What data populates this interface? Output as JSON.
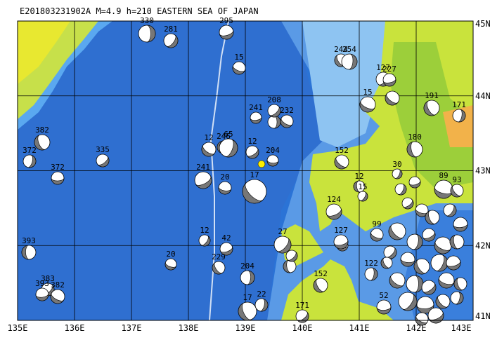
{
  "header": {
    "title": "E201803231902A M=4.9 h=210 EASTERN SEA OF JAPAN"
  },
  "axes": {
    "longitude": [
      "135E",
      "136E",
      "137E",
      "138E",
      "139E",
      "140E",
      "141E",
      "142E",
      "143E"
    ],
    "latitude": [
      "45N",
      "44N",
      "43N",
      "42N",
      "41N"
    ]
  },
  "events": [
    {
      "label": "330"
    },
    {
      "label": "281"
    },
    {
      "label": "295"
    },
    {
      "label": "15"
    },
    {
      "label": "244"
    },
    {
      "label": "254"
    },
    {
      "label": "127"
    },
    {
      "label": "227"
    },
    {
      "label": "15"
    },
    {
      "label": "191"
    },
    {
      "label": "171"
    },
    {
      "label": "208"
    },
    {
      "label": "241"
    },
    {
      "label": "232"
    },
    {
      "label": "382"
    },
    {
      "label": "372"
    },
    {
      "label": "335"
    },
    {
      "label": "372"
    },
    {
      "label": "12"
    },
    {
      "label": "246"
    },
    {
      "label": "65"
    },
    {
      "label": "12"
    },
    {
      "label": "204"
    },
    {
      "label": "152"
    },
    {
      "label": "180"
    },
    {
      "label": "30"
    },
    {
      "label": "241"
    },
    {
      "label": "20"
    },
    {
      "label": "17"
    },
    {
      "label": "12"
    },
    {
      "label": "15"
    },
    {
      "label": "124"
    },
    {
      "label": "89"
    },
    {
      "label": "93"
    },
    {
      "label": "393"
    },
    {
      "label": "12"
    },
    {
      "label": "42"
    },
    {
      "label": "20"
    },
    {
      "label": "229"
    },
    {
      "label": "204"
    },
    {
      "label": "27"
    },
    {
      "label": "127"
    },
    {
      "label": "99"
    },
    {
      "label": "152"
    },
    {
      "label": "122"
    },
    {
      "label": "383"
    },
    {
      "label": "393"
    },
    {
      "label": "382"
    },
    {
      "label": "17"
    },
    {
      "label": "22"
    },
    {
      "label": "171"
    },
    {
      "label": "52"
    }
  ]
}
